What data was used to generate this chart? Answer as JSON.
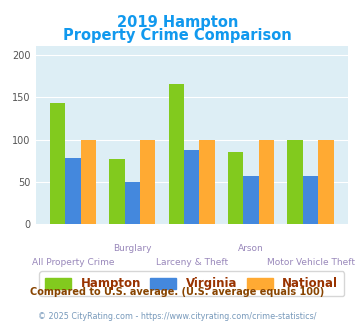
{
  "title_line1": "2019 Hampton",
  "title_line2": "Property Crime Comparison",
  "categories": [
    "All Property Crime",
    "Burglary",
    "Larceny & Theft",
    "Arson",
    "Motor Vehicle Theft"
  ],
  "category_labels_row1": [
    "",
    "Burglary",
    "",
    "Arson",
    ""
  ],
  "category_labels_row2": [
    "All Property Crime",
    "",
    "Larceny & Theft",
    "",
    "Motor Vehicle Theft"
  ],
  "hampton": [
    143,
    77,
    165,
    85,
    100
  ],
  "virginia": [
    78,
    50,
    88,
    57,
    57
  ],
  "national": [
    100,
    100,
    100,
    100,
    100
  ],
  "hampton_color": "#82ca1e",
  "virginia_color": "#4488dd",
  "national_color": "#ffaa33",
  "bar_bg": "#ddeef5",
  "title_color": "#1199ee",
  "label_color": "#9988bb",
  "ylim": [
    0,
    210
  ],
  "yticks": [
    0,
    50,
    100,
    150,
    200
  ],
  "legend_labels": [
    "Hampton",
    "Virginia",
    "National"
  ],
  "legend_text_color": "#993300",
  "footnote1": "Compared to U.S. average. (U.S. average equals 100)",
  "footnote2": "© 2025 CityRating.com - https://www.cityrating.com/crime-statistics/",
  "footnote1_color": "#884400",
  "footnote2_color": "#7799bb"
}
